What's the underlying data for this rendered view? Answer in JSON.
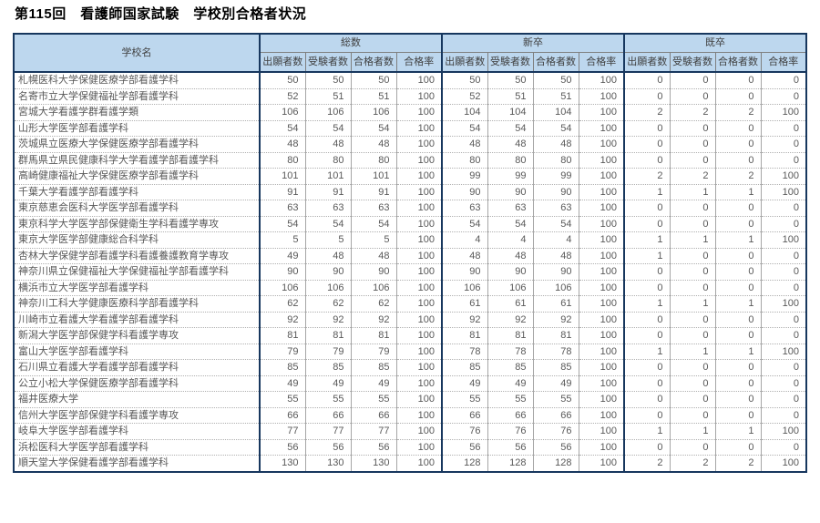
{
  "title": "第115回　看護師国家試験　学校別合格者状況",
  "table": {
    "school_header": "学校名",
    "groups": [
      "総数",
      "新卒",
      "既卒"
    ],
    "sub_headers": [
      "出願者数",
      "受験者数",
      "合格者数",
      "合格率"
    ],
    "rows": [
      {
        "school": "札幌医科大学保健医療学部看護学科",
        "values": [
          50,
          50,
          50,
          100,
          50,
          50,
          50,
          100,
          0,
          0,
          0,
          0
        ]
      },
      {
        "school": "名寄市立大学保健福祉学部看護学科",
        "values": [
          52,
          51,
          51,
          100,
          52,
          51,
          51,
          100,
          0,
          0,
          0,
          0
        ]
      },
      {
        "school": "宮城大学看護学群看護学類",
        "values": [
          106,
          106,
          106,
          100,
          104,
          104,
          104,
          100,
          2,
          2,
          2,
          100
        ]
      },
      {
        "school": "山形大学医学部看護学科",
        "values": [
          54,
          54,
          54,
          100,
          54,
          54,
          54,
          100,
          0,
          0,
          0,
          0
        ]
      },
      {
        "school": "茨城県立医療大学保健医療学部看護学科",
        "values": [
          48,
          48,
          48,
          100,
          48,
          48,
          48,
          100,
          0,
          0,
          0,
          0
        ]
      },
      {
        "school": "群馬県立県民健康科学大学看護学部看護学科",
        "values": [
          80,
          80,
          80,
          100,
          80,
          80,
          80,
          100,
          0,
          0,
          0,
          0
        ]
      },
      {
        "school": "高崎健康福祉大学保健医療学部看護学科",
        "values": [
          101,
          101,
          101,
          100,
          99,
          99,
          99,
          100,
          2,
          2,
          2,
          100
        ]
      },
      {
        "school": "千葉大学看護学部看護学科",
        "values": [
          91,
          91,
          91,
          100,
          90,
          90,
          90,
          100,
          1,
          1,
          1,
          100
        ]
      },
      {
        "school": "東京慈恵会医科大学医学部看護学科",
        "values": [
          63,
          63,
          63,
          100,
          63,
          63,
          63,
          100,
          0,
          0,
          0,
          0
        ]
      },
      {
        "school": "東京科学大学医学部保健衛生学科看護学専攻",
        "values": [
          54,
          54,
          54,
          100,
          54,
          54,
          54,
          100,
          0,
          0,
          0,
          0
        ]
      },
      {
        "school": "東京大学医学部健康総合科学科",
        "values": [
          5,
          5,
          5,
          100,
          4,
          4,
          4,
          100,
          1,
          1,
          1,
          100
        ]
      },
      {
        "school": "杏林大学保健学部看護学科看護養護教育学専攻",
        "values": [
          49,
          48,
          48,
          100,
          48,
          48,
          48,
          100,
          1,
          0,
          0,
          0
        ]
      },
      {
        "school": "神奈川県立保健福祉大学保健福祉学部看護学科",
        "values": [
          90,
          90,
          90,
          100,
          90,
          90,
          90,
          100,
          0,
          0,
          0,
          0
        ]
      },
      {
        "school": "横浜市立大学医学部看護学科",
        "values": [
          106,
          106,
          106,
          100,
          106,
          106,
          106,
          100,
          0,
          0,
          0,
          0
        ]
      },
      {
        "school": "神奈川工科大学健康医療科学部看護学科",
        "values": [
          62,
          62,
          62,
          100,
          61,
          61,
          61,
          100,
          1,
          1,
          1,
          100
        ]
      },
      {
        "school": "川崎市立看護大学看護学部看護学科",
        "values": [
          92,
          92,
          92,
          100,
          92,
          92,
          92,
          100,
          0,
          0,
          0,
          0
        ]
      },
      {
        "school": "新潟大学医学部保健学科看護学専攻",
        "values": [
          81,
          81,
          81,
          100,
          81,
          81,
          81,
          100,
          0,
          0,
          0,
          0
        ]
      },
      {
        "school": "富山大学医学部看護学科",
        "values": [
          79,
          79,
          79,
          100,
          78,
          78,
          78,
          100,
          1,
          1,
          1,
          100
        ]
      },
      {
        "school": "石川県立看護大学看護学部看護学科",
        "values": [
          85,
          85,
          85,
          100,
          85,
          85,
          85,
          100,
          0,
          0,
          0,
          0
        ]
      },
      {
        "school": "公立小松大学保健医療学部看護学科",
        "values": [
          49,
          49,
          49,
          100,
          49,
          49,
          49,
          100,
          0,
          0,
          0,
          0
        ]
      },
      {
        "school": "福井医療大学",
        "values": [
          55,
          55,
          55,
          100,
          55,
          55,
          55,
          100,
          0,
          0,
          0,
          0
        ]
      },
      {
        "school": "信州大学医学部保健学科看護学専攻",
        "values": [
          66,
          66,
          66,
          100,
          66,
          66,
          66,
          100,
          0,
          0,
          0,
          0
        ]
      },
      {
        "school": "岐阜大学医学部看護学科",
        "values": [
          77,
          77,
          77,
          100,
          76,
          76,
          76,
          100,
          1,
          1,
          1,
          100
        ]
      },
      {
        "school": "浜松医科大学医学部看護学科",
        "values": [
          56,
          56,
          56,
          100,
          56,
          56,
          56,
          100,
          0,
          0,
          0,
          0
        ]
      },
      {
        "school": "順天堂大学保健看護学部看護学科",
        "values": [
          130,
          130,
          130,
          100,
          128,
          128,
          128,
          100,
          2,
          2,
          2,
          100
        ]
      }
    ]
  }
}
